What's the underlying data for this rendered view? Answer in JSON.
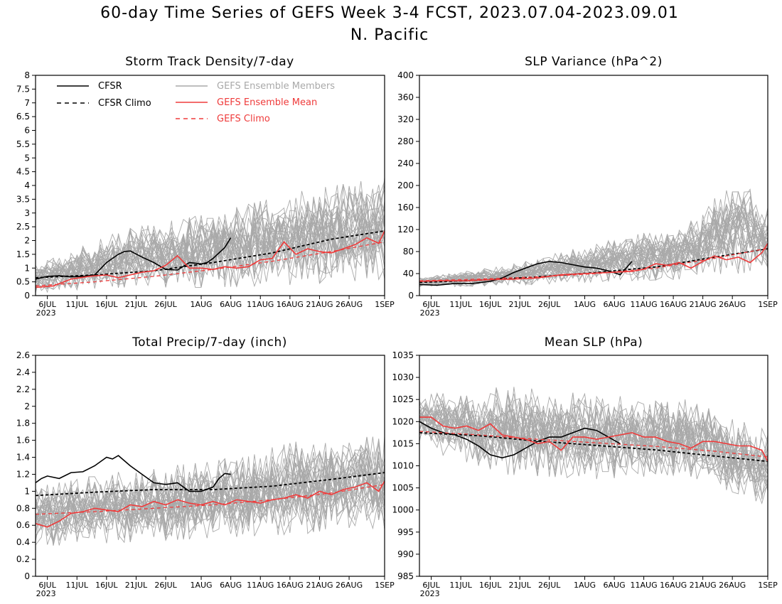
{
  "title": {
    "line1": "60-day Time Series of GEFS Week 3-4 FCST, 2023.07.04-2023.09.01",
    "line2": "N. Pacific"
  },
  "colors": {
    "cfsr": "#000000",
    "ensemble_members": "#a9a9a9",
    "ensemble_mean": "#ef3b3b",
    "gefs_climo": "#ef3b3b"
  },
  "legend": [
    {
      "label": "CFSR",
      "style": "solid",
      "color": "#000000"
    },
    {
      "label": "CFSR Climo",
      "style": "dashed",
      "color": "#000000"
    },
    {
      "label": "GEFS Ensemble Members",
      "style": "solid",
      "color": "#a9a9a9"
    },
    {
      "label": "GEFS Ensemble Mean",
      "style": "solid",
      "color": "#ef3b3b"
    },
    {
      "label": "GEFS Climo",
      "style": "dashed",
      "color": "#ef3b3b"
    }
  ],
  "x_tick_labels": [
    "6JUL",
    "11JUL",
    "16JUL",
    "21JUL",
    "26JUL",
    "1AUG",
    "6AUG",
    "11AUG",
    "16AUG",
    "21AUG",
    "26AUG",
    "1SEP"
  ],
  "x_year_label": "2023",
  "chart_data": [
    {
      "type": "line",
      "title": "Storm Track Density/7-day",
      "x_range": [
        "2023-07-04",
        "2023-09-01"
      ],
      "ylim": [
        0,
        8
      ],
      "yticks": [
        "0",
        "0.5",
        "1",
        "1.5",
        "2",
        "2.5",
        "3",
        "3.5",
        "4",
        "4.5",
        "5",
        "5.5",
        "6",
        "6.5",
        "7",
        "7.5",
        "8"
      ],
      "legend_position": "top-left",
      "ensemble_members": {
        "count": 30,
        "approx_spread": [
          [
            0,
            0.1,
            1.1
          ],
          [
            15,
            0.3,
            2.4
          ],
          [
            30,
            0.3,
            3.0
          ],
          [
            45,
            0.4,
            3.8
          ],
          [
            59,
            0.6,
            4.3
          ]
        ]
      },
      "series": [
        {
          "name": "CFSR",
          "x_days": [
            0,
            2,
            4,
            6,
            8,
            10,
            12,
            14,
            15,
            16,
            18,
            20,
            22,
            24,
            26,
            28,
            29,
            30,
            32,
            33
          ],
          "values": [
            0.6,
            0.7,
            0.72,
            0.68,
            0.7,
            0.75,
            1.2,
            1.5,
            1.6,
            1.62,
            1.4,
            1.2,
            0.95,
            0.93,
            1.2,
            1.15,
            1.2,
            1.35,
            1.75,
            2.1
          ]
        },
        {
          "name": "CFSR Climo",
          "x_days": [
            0,
            10,
            20,
            30,
            40,
            50,
            59
          ],
          "values": [
            0.65,
            0.75,
            0.9,
            1.2,
            1.55,
            2.05,
            2.35
          ]
        },
        {
          "name": "GEFS Ensemble Mean",
          "x_days": [
            0,
            3,
            6,
            9,
            12,
            14,
            16,
            18,
            20,
            22,
            24,
            26,
            28,
            30,
            32,
            34,
            36,
            38,
            40,
            42,
            44,
            46,
            48,
            50,
            52,
            54,
            56,
            58,
            59
          ],
          "values": [
            0.3,
            0.35,
            0.6,
            0.7,
            0.75,
            0.65,
            0.75,
            0.85,
            0.9,
            1.1,
            1.45,
            1.0,
            1.0,
            0.95,
            1.05,
            1.0,
            1.05,
            1.3,
            1.35,
            1.95,
            1.5,
            1.7,
            1.6,
            1.55,
            1.7,
            1.85,
            2.1,
            1.9,
            2.35
          ]
        },
        {
          "name": "GEFS Climo",
          "x_days": [
            0,
            10,
            20,
            30,
            40,
            50,
            59
          ],
          "values": [
            0.35,
            0.5,
            0.7,
            0.95,
            1.25,
            1.6,
            1.95
          ]
        }
      ]
    },
    {
      "type": "line",
      "title": "SLP Variance (hPa^2)",
      "x_range": [
        "2023-07-04",
        "2023-09-01"
      ],
      "ylim": [
        0,
        400
      ],
      "yticks": [
        "0",
        "40",
        "80",
        "120",
        "160",
        "200",
        "240",
        "280",
        "320",
        "360",
        "400"
      ],
      "ensemble_members": {
        "count": 30,
        "approx_spread": [
          [
            0,
            15,
            32
          ],
          [
            15,
            18,
            55
          ],
          [
            30,
            25,
            95
          ],
          [
            45,
            30,
            130
          ],
          [
            54,
            40,
            215
          ],
          [
            59,
            45,
            160
          ]
        ]
      },
      "series": [
        {
          "name": "CFSR",
          "x_days": [
            0,
            3,
            6,
            9,
            12,
            14,
            16,
            18,
            20,
            22,
            24,
            26,
            28,
            30,
            32,
            34,
            36
          ],
          "values": [
            20,
            19,
            22,
            22,
            26,
            32,
            42,
            50,
            58,
            62,
            60,
            56,
            52,
            50,
            45,
            38,
            62
          ]
        },
        {
          "name": "CFSR Climo",
          "x_days": [
            0,
            10,
            20,
            30,
            40,
            50,
            59
          ],
          "values": [
            24,
            28,
            34,
            42,
            52,
            70,
            85
          ]
        },
        {
          "name": "GEFS Ensemble Mean",
          "x_days": [
            0,
            4,
            8,
            12,
            16,
            20,
            24,
            28,
            32,
            36,
            38,
            40,
            42,
            44,
            46,
            48,
            50,
            52,
            54,
            56,
            58,
            59
          ],
          "values": [
            26,
            27,
            27,
            29,
            30,
            32,
            38,
            40,
            42,
            44,
            48,
            58,
            55,
            60,
            50,
            62,
            72,
            65,
            70,
            60,
            78,
            95
          ]
        },
        {
          "name": "GEFS Climo",
          "x_days": [
            0,
            10,
            20,
            30,
            40,
            50,
            59
          ],
          "values": [
            27,
            30,
            34,
            40,
            50,
            68,
            86
          ]
        }
      ]
    },
    {
      "type": "line",
      "title": "Total Precip/7-day (inch)",
      "x_range": [
        "2023-07-04",
        "2023-09-01"
      ],
      "ylim": [
        0,
        2.6
      ],
      "yticks": [
        "0",
        "0.2",
        "0.4",
        "0.6",
        "0.8",
        "1",
        "1.2",
        "1.4",
        "1.6",
        "1.8",
        "2",
        "2.2",
        "2.4",
        "2.6"
      ],
      "ensemble_members": {
        "count": 30,
        "approx_spread": [
          [
            0,
            0.35,
            1.05
          ],
          [
            15,
            0.4,
            1.25
          ],
          [
            30,
            0.45,
            1.35
          ],
          [
            45,
            0.5,
            1.6
          ],
          [
            59,
            0.55,
            1.65
          ]
        ]
      },
      "series": [
        {
          "name": "CFSR",
          "x_days": [
            0,
            1,
            2,
            4,
            6,
            8,
            10,
            12,
            13,
            14,
            16,
            18,
            20,
            22,
            24,
            26,
            28,
            30,
            31,
            32,
            33
          ],
          "values": [
            1.1,
            1.15,
            1.18,
            1.15,
            1.22,
            1.23,
            1.3,
            1.4,
            1.38,
            1.42,
            1.3,
            1.2,
            1.1,
            1.08,
            1.1,
            1.0,
            1.0,
            1.05,
            1.15,
            1.21,
            1.2
          ]
        },
        {
          "name": "CFSR Climo",
          "x_days": [
            0,
            5,
            10,
            20,
            30,
            40,
            50,
            59
          ],
          "values": [
            0.95,
            0.97,
            0.99,
            1.02,
            1.02,
            1.06,
            1.14,
            1.22
          ]
        },
        {
          "name": "GEFS Ensemble Mean",
          "x_days": [
            0,
            2,
            4,
            6,
            8,
            10,
            12,
            14,
            16,
            18,
            20,
            22,
            24,
            26,
            28,
            30,
            32,
            34,
            36,
            38,
            40,
            42,
            44,
            46,
            48,
            50,
            52,
            54,
            56,
            58,
            59
          ],
          "values": [
            0.62,
            0.58,
            0.65,
            0.74,
            0.76,
            0.8,
            0.78,
            0.76,
            0.84,
            0.82,
            0.88,
            0.84,
            0.9,
            0.86,
            0.84,
            0.88,
            0.84,
            0.9,
            0.88,
            0.86,
            0.9,
            0.92,
            0.96,
            0.92,
            1.0,
            0.96,
            1.02,
            1.05,
            1.1,
            1.0,
            1.12
          ]
        },
        {
          "name": "GEFS Climo",
          "x_days": [
            0,
            10,
            20,
            30,
            40,
            50,
            59
          ],
          "values": [
            0.73,
            0.76,
            0.8,
            0.84,
            0.9,
            0.98,
            1.08
          ]
        }
      ]
    },
    {
      "type": "line",
      "title": "Mean SLP (hPa)",
      "x_range": [
        "2023-07-04",
        "2023-09-01"
      ],
      "ylim": [
        985,
        1035
      ],
      "yticks": [
        "985",
        "990",
        "995",
        "1000",
        "1005",
        "1010",
        "1015",
        "1020",
        "1025",
        "1030",
        "1035"
      ],
      "ensemble_members": {
        "count": 30,
        "approx_spread": [
          [
            0,
            1014,
            1026
          ],
          [
            15,
            1008,
            1028
          ],
          [
            30,
            1007,
            1026
          ],
          [
            45,
            1008,
            1025
          ],
          [
            59,
            1001,
            1018
          ]
        ]
      },
      "series": [
        {
          "name": "CFSR",
          "x_days": [
            0,
            2,
            4,
            6,
            8,
            10,
            12,
            14,
            16,
            18,
            20,
            22,
            24,
            26,
            28,
            30,
            32,
            34
          ],
          "values": [
            1020,
            1018.5,
            1017.5,
            1017,
            1016,
            1014.5,
            1012.5,
            1011.8,
            1012.5,
            1014,
            1015.5,
            1016.5,
            1016.5,
            1017.5,
            1018.5,
            1018,
            1016.5,
            1015
          ]
        },
        {
          "name": "CFSR Climo",
          "x_days": [
            0,
            10,
            20,
            30,
            40,
            50,
            59
          ],
          "values": [
            1017.5,
            1016.8,
            1015.6,
            1014.6,
            1013.6,
            1012.2,
            1011
          ]
        },
        {
          "name": "GEFS Ensemble Mean",
          "x_days": [
            0,
            2,
            4,
            6,
            8,
            10,
            12,
            14,
            16,
            18,
            20,
            22,
            24,
            26,
            28,
            30,
            32,
            34,
            36,
            38,
            40,
            42,
            44,
            46,
            48,
            50,
            52,
            54,
            56,
            58,
            59
          ],
          "values": [
            1021,
            1021,
            1019,
            1018.5,
            1019,
            1018,
            1019.5,
            1017,
            1016.5,
            1016,
            1015,
            1015.5,
            1013.5,
            1016.5,
            1016.5,
            1016,
            1016.5,
            1017,
            1017.5,
            1016.5,
            1016.5,
            1015.5,
            1015,
            1014,
            1015.5,
            1015.5,
            1015,
            1014.5,
            1014.5,
            1013.5,
            1011
          ]
        },
        {
          "name": "GEFS Climo",
          "x_days": [
            0,
            10,
            20,
            30,
            40,
            50,
            59
          ],
          "values": [
            1017.8,
            1017,
            1016,
            1015.2,
            1014.4,
            1013.3,
            1012
          ]
        }
      ]
    }
  ]
}
